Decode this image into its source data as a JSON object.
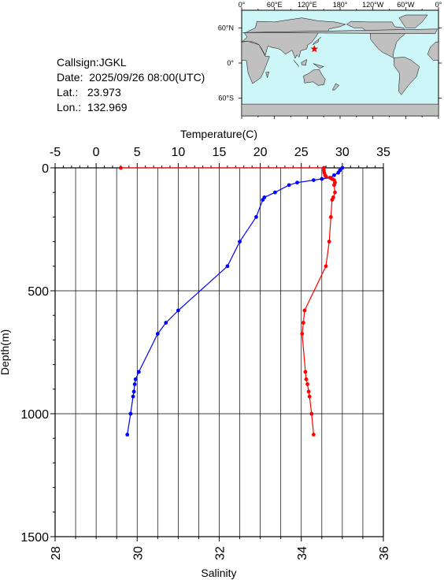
{
  "info": {
    "callsign_label": "Callsign:",
    "callsign": "JGKL",
    "date_label": "Date:",
    "date": "2025/09/26 08:00(UTC)",
    "lat_label": "Lat.:",
    "lat": "23.973",
    "lon_label": "Lon.:",
    "lon": "132.969"
  },
  "map": {
    "lon_ticks": [
      "0°",
      "60°E",
      "120°E",
      "180°",
      "120°W",
      "60°W",
      "0°"
    ],
    "lat_ticks": [
      "60°N",
      "0°",
      "60°S"
    ],
    "station_lon": 132.969,
    "station_lat": 23.973,
    "colors": {
      "ocean": "#cdf6f8",
      "land": "#c0c0c0",
      "marker": "#ff0000"
    }
  },
  "chart_data": {
    "type": "line",
    "xlabel_top": "Temperature(C)",
    "xlabel_bottom": "Salinity",
    "ylabel": "Depth(m)",
    "temperature_range": [
      -5,
      35
    ],
    "temperature_ticks": [
      "-5",
      "0",
      "5",
      "10",
      "15",
      "20",
      "25",
      "30",
      "35"
    ],
    "salinity_range": [
      28,
      36
    ],
    "salinity_ticks": [
      "28",
      "30",
      "32",
      "34",
      "36"
    ],
    "depth_range": [
      0,
      1500
    ],
    "depth_ticks": [
      "0",
      "500",
      "1000",
      "1500"
    ],
    "grid": true,
    "series": [
      {
        "axis": "temperature",
        "color": "#0000ff",
        "points": [
          [
            30.0,
            0
          ],
          [
            29.7,
            10
          ],
          [
            29.5,
            20
          ],
          [
            29.0,
            30
          ],
          [
            28.5,
            40
          ],
          [
            27.5,
            45
          ],
          [
            26.5,
            50
          ],
          [
            24.5,
            60
          ],
          [
            23.5,
            70
          ],
          [
            21.8,
            100
          ],
          [
            20.5,
            120
          ],
          [
            20.3,
            130
          ],
          [
            19.5,
            200
          ],
          [
            17.5,
            300
          ],
          [
            16.0,
            400
          ],
          [
            10.0,
            580
          ],
          [
            8.5,
            630
          ],
          [
            7.5,
            675
          ],
          [
            5.2,
            830
          ],
          [
            4.8,
            860
          ],
          [
            4.7,
            880
          ],
          [
            4.6,
            910
          ],
          [
            4.5,
            930
          ],
          [
            4.2,
            1000
          ],
          [
            3.8,
            1085
          ]
        ]
      },
      {
        "axis": "salinity",
        "color": "#ff0000",
        "points": [
          [
            29.6,
            0
          ],
          [
            34.55,
            0
          ],
          [
            34.55,
            10
          ],
          [
            34.56,
            20
          ],
          [
            34.58,
            30
          ],
          [
            34.6,
            35
          ],
          [
            34.7,
            40
          ],
          [
            34.75,
            45
          ],
          [
            34.8,
            50
          ],
          [
            34.82,
            60
          ],
          [
            34.8,
            70
          ],
          [
            34.82,
            100
          ],
          [
            34.78,
            120
          ],
          [
            34.75,
            130
          ],
          [
            34.72,
            200
          ],
          [
            34.68,
            300
          ],
          [
            34.6,
            400
          ],
          [
            34.08,
            580
          ],
          [
            34.05,
            630
          ],
          [
            34.02,
            675
          ],
          [
            34.1,
            830
          ],
          [
            34.12,
            860
          ],
          [
            34.15,
            880
          ],
          [
            34.18,
            910
          ],
          [
            34.2,
            930
          ],
          [
            34.25,
            1000
          ],
          [
            34.3,
            1085
          ]
        ]
      }
    ]
  }
}
